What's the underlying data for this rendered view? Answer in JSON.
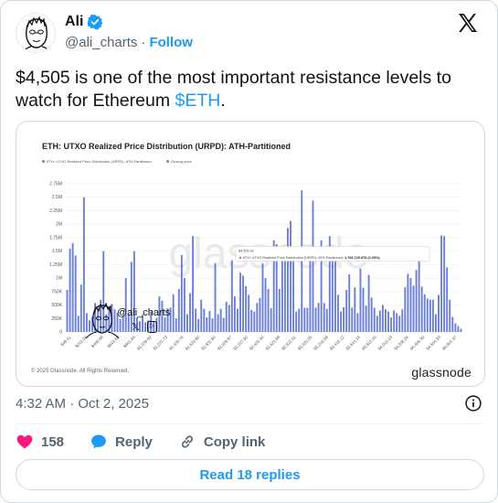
{
  "author": {
    "name": "Ali",
    "handle": "@ali_charts",
    "separator": "·",
    "follow_label": "Follow"
  },
  "tweet": {
    "text_before": "$4,505 is one of the most important resistance levels to watch for Ethereum ",
    "cashtag": "$ETH",
    "text_after": "."
  },
  "media": {
    "copyright": "© 2025 Glassnode. All Rights Reserved.",
    "brand": "glassnode",
    "watermark": "glassnode",
    "overlay_handle": "@ali_charts",
    "overlay_x_icon": "𝕏",
    "overlay_yt_icon": "▷"
  },
  "chart_data": {
    "type": "bar",
    "title": "ETH: UTXO Realized Price Distribution (URPD): ATH-Partitioned",
    "legend": [
      "ETH: UTXO Realized Price Distribution (URPD): ATH-Partitioned",
      "Closing price"
    ],
    "colors": {
      "bars": "#6b7fd6",
      "closing": "#8a8a8a",
      "grid": "#eeeeee"
    },
    "ylim": [
      0,
      2750000
    ],
    "yticks": [
      "0",
      "250K",
      "500K",
      "750K",
      "1M",
      "1.25M",
      "1.5M",
      "1.75M",
      "2M",
      "2.25M",
      "2.5M",
      "2.75M"
    ],
    "xticks": [
      "$49.51",
      "$242.04",
      "$468.08",
      "$643.63",
      "$841.65",
      "$1,039.69",
      "$1,237.73",
      "$1,435.76",
      "$1,633.80",
      "$1,831.84",
      "$2,029.87",
      "$2,227.90",
      "$2,425.94",
      "$2,623.98",
      "$2,822.01",
      "$3,020.05",
      "$3,218.08",
      "$3,416.12",
      "$3,614.15",
      "$3,812.19",
      "$4,010.23",
      "$4,208.26",
      "$4,406.30",
      "$4,604.33",
      "$4,802.37"
    ],
    "values": [
      780000,
      1550000,
      1650000,
      1420000,
      300000,
      880000,
      2500000,
      350000,
      220000,
      280000,
      540000,
      450000,
      600000,
      1500000,
      330000,
      480000,
      520000,
      420000,
      360000,
      240000,
      310000,
      1000000,
      330000,
      1300000,
      1500000,
      270000,
      200000,
      320000,
      180000,
      220000,
      380000,
      200000,
      260000,
      660000,
      580000,
      270000,
      440000,
      450000,
      700000,
      250000,
      800000,
      1430000,
      1000000,
      330000,
      720000,
      1780000,
      430000,
      240000,
      600000,
      430000,
      270000,
      390000,
      250000,
      1280000,
      330000,
      430000,
      260000,
      560000,
      500000,
      1330000,
      660000,
      430000,
      1100000,
      1050000,
      850000,
      690000,
      410000,
      380000,
      540000,
      630000,
      1270000,
      1000000,
      800000,
      440000,
      1700000,
      1630000,
      800000,
      1460000,
      1570000,
      1930000,
      2060000,
      1500000,
      380000,
      430000,
      2630000,
      450000,
      450000,
      1480000,
      2440000,
      450000,
      540000,
      1700000,
      540000,
      430000,
      1780000,
      1430000,
      1320000,
      690000,
      380000,
      460000,
      780000,
      1070000,
      450000,
      830000,
      350000,
      1180000,
      820000,
      490000,
      1060000,
      640000,
      450000,
      300000,
      400000,
      500000,
      420000,
      380000,
      270000,
      400000,
      350000,
      300000,
      420000,
      830000,
      1080000,
      1000000,
      860000,
      1150000,
      1400000,
      840000,
      700000,
      620000,
      600000,
      600000,
      330000,
      690000,
      1790000,
      1780000,
      1200000,
      600000,
      280000,
      160000,
      110000,
      60000
    ],
    "closing_index": 116,
    "annotation": {
      "label_price": "$4,505.92",
      "label_text": "ETH: UTXO Realized Price Distribution (URPD): ATH-Partitioned",
      "label_value": "1,766,725.578 (2.25%)"
    }
  },
  "meta": {
    "timestamp": "4:32 AM · Oct 2, 2025"
  },
  "actions": {
    "likes": "158",
    "reply_label": "Reply",
    "copy_label": "Copy link",
    "read_replies_label": "Read 18 replies"
  }
}
